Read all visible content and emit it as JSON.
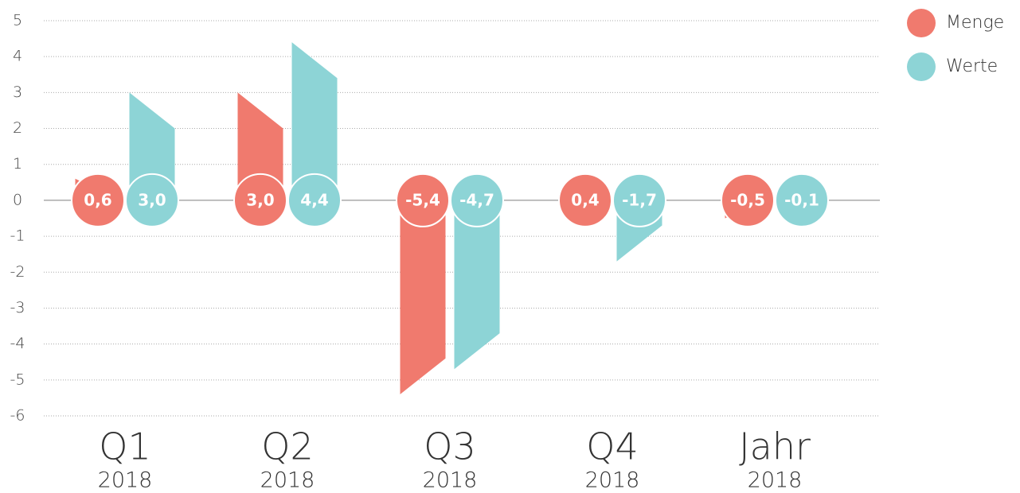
{
  "chart_data": {
    "type": "bar",
    "categories": [
      "Q1",
      "Q2",
      "Q3",
      "Q4",
      "Jahr"
    ],
    "category_sublabels": [
      "2018",
      "2018",
      "2018",
      "2018",
      "2018"
    ],
    "series": [
      {
        "name": "Menge",
        "color": "#f07a6e",
        "values": [
          0.6,
          3.0,
          -5.4,
          0.4,
          -0.5
        ],
        "value_labels": [
          "0,6",
          "3,0",
          "-5,4",
          "0,4",
          "-0,5"
        ]
      },
      {
        "name": "Werte",
        "color": "#8dd4d6",
        "values": [
          3.0,
          4.4,
          -4.7,
          -1.7,
          -0.1
        ],
        "value_labels": [
          "3,0",
          "4,4",
          "-4,7",
          "-1,7",
          "-0,1"
        ]
      }
    ],
    "ylim": [
      -6,
      5
    ],
    "yticks": [
      -6,
      -5,
      -4,
      -3,
      -2,
      -1,
      0,
      1,
      2,
      3,
      4,
      5
    ],
    "grid": true,
    "legend": "top-right"
  }
}
